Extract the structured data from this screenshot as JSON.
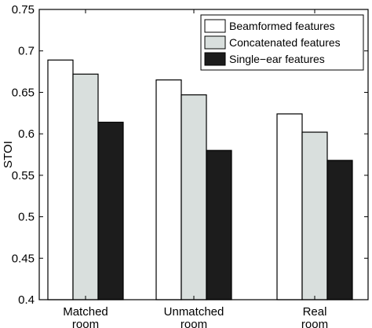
{
  "chart_data": {
    "type": "bar",
    "title": "",
    "xlabel": "",
    "ylabel": "STOI",
    "ylim": [
      0.4,
      0.75
    ],
    "yticks": [
      0.4,
      0.45,
      0.5,
      0.55,
      0.6,
      0.65,
      0.7,
      0.75
    ],
    "ytick_labels": [
      "0.4",
      "0.45",
      "0.5",
      "0.55",
      "0.6",
      "0.65",
      "0.7",
      "0.75"
    ],
    "grid": false,
    "legend_position": "top-right",
    "categories": [
      [
        "Matched",
        "room"
      ],
      [
        "Unmatched",
        "room"
      ],
      [
        "Real",
        "room"
      ]
    ],
    "series": [
      {
        "name": "Beamformed features",
        "color": "#ffffff",
        "values": [
          0.689,
          0.665,
          0.624
        ]
      },
      {
        "name": "Concatenated features",
        "color": "#d9dfdd",
        "values": [
          0.672,
          0.647,
          0.602
        ]
      },
      {
        "name": "Single−ear features",
        "color": "#1c1c1c",
        "values": [
          0.614,
          0.58,
          0.568
        ]
      }
    ]
  }
}
